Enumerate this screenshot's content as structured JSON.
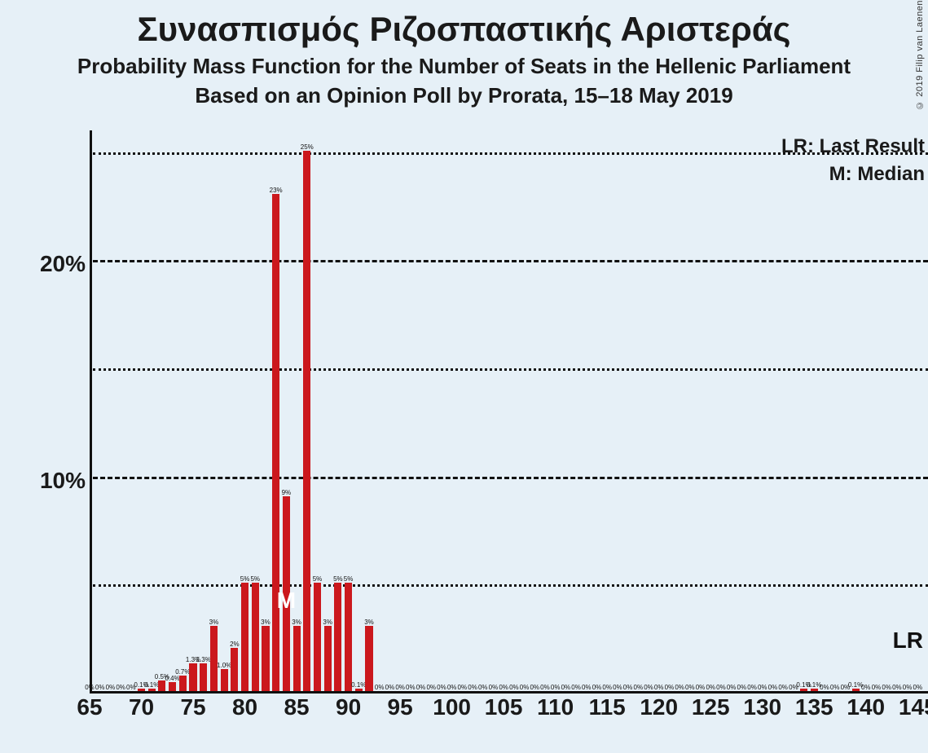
{
  "background_color": "#e6f0f7",
  "bar_color": "#cb181d",
  "axis_color": "#111111",
  "title": "Συνασπισμός Ριζοσπαστικής Αριστεράς",
  "subtitle1": "Probability Mass Function for the Number of Seats in the Hellenic Parliament",
  "subtitle2": "Based on an Opinion Poll by Prorata, 15–18 May 2019",
  "copyright": "© 2019 Filip van Laenen",
  "legend": {
    "lr": "LR: Last Result",
    "m": "M: Median"
  },
  "y_axis": {
    "label_10": "10%",
    "label_20": "20%",
    "max": 26,
    "major_dashed": [
      20,
      10
    ],
    "minor_dotted": [
      25,
      15,
      5
    ]
  },
  "x_axis": {
    "min": 65,
    "max": 146,
    "ticks": [
      65,
      70,
      75,
      80,
      85,
      90,
      95,
      100,
      105,
      110,
      115,
      120,
      125,
      130,
      135,
      140,
      145
    ]
  },
  "median_seat": 84,
  "lr_seat": 145,
  "bars": [
    {
      "seat": 65,
      "pct": 0,
      "label": "0%"
    },
    {
      "seat": 66,
      "pct": 0,
      "label": "0%"
    },
    {
      "seat": 67,
      "pct": 0,
      "label": "0%"
    },
    {
      "seat": 68,
      "pct": 0,
      "label": "0%"
    },
    {
      "seat": 69,
      "pct": 0,
      "label": "0%"
    },
    {
      "seat": 70,
      "pct": 0.1,
      "label": "0.1%"
    },
    {
      "seat": 71,
      "pct": 0.1,
      "label": "0.1%"
    },
    {
      "seat": 72,
      "pct": 0.5,
      "label": "0.5%"
    },
    {
      "seat": 73,
      "pct": 0.4,
      "label": "0.4%"
    },
    {
      "seat": 74,
      "pct": 0.7,
      "label": "0.7%"
    },
    {
      "seat": 75,
      "pct": 1.3,
      "label": "1.3%"
    },
    {
      "seat": 76,
      "pct": 1.3,
      "label": "1.3%"
    },
    {
      "seat": 77,
      "pct": 3,
      "label": "3%"
    },
    {
      "seat": 78,
      "pct": 1.0,
      "label": "1.0%"
    },
    {
      "seat": 79,
      "pct": 2,
      "label": "2%"
    },
    {
      "seat": 80,
      "pct": 5,
      "label": "5%"
    },
    {
      "seat": 81,
      "pct": 5,
      "label": "5%"
    },
    {
      "seat": 82,
      "pct": 3,
      "label": "3%"
    },
    {
      "seat": 83,
      "pct": 23,
      "label": "23%"
    },
    {
      "seat": 84,
      "pct": 9,
      "label": "9%"
    },
    {
      "seat": 85,
      "pct": 3,
      "label": "3%"
    },
    {
      "seat": 86,
      "pct": 25,
      "label": "25%"
    },
    {
      "seat": 87,
      "pct": 5,
      "label": "5%"
    },
    {
      "seat": 88,
      "pct": 3,
      "label": "3%"
    },
    {
      "seat": 89,
      "pct": 5,
      "label": "5%"
    },
    {
      "seat": 90,
      "pct": 5,
      "label": "5%"
    },
    {
      "seat": 91,
      "pct": 0.1,
      "label": "0.1%"
    },
    {
      "seat": 92,
      "pct": 3,
      "label": "3%"
    },
    {
      "seat": 93,
      "pct": 0,
      "label": "0%"
    },
    {
      "seat": 94,
      "pct": 0,
      "label": "0%"
    },
    {
      "seat": 95,
      "pct": 0,
      "label": "0%"
    },
    {
      "seat": 96,
      "pct": 0,
      "label": "0%"
    },
    {
      "seat": 97,
      "pct": 0,
      "label": "0%"
    },
    {
      "seat": 98,
      "pct": 0,
      "label": "0%"
    },
    {
      "seat": 99,
      "pct": 0,
      "label": "0%"
    },
    {
      "seat": 100,
      "pct": 0,
      "label": "0%"
    },
    {
      "seat": 101,
      "pct": 0,
      "label": "0%"
    },
    {
      "seat": 102,
      "pct": 0,
      "label": "0%"
    },
    {
      "seat": 103,
      "pct": 0,
      "label": "0%"
    },
    {
      "seat": 104,
      "pct": 0,
      "label": "0%"
    },
    {
      "seat": 105,
      "pct": 0,
      "label": "0%"
    },
    {
      "seat": 106,
      "pct": 0,
      "label": "0%"
    },
    {
      "seat": 107,
      "pct": 0,
      "label": "0%"
    },
    {
      "seat": 108,
      "pct": 0,
      "label": "0%"
    },
    {
      "seat": 109,
      "pct": 0,
      "label": "0%"
    },
    {
      "seat": 110,
      "pct": 0,
      "label": "0%"
    },
    {
      "seat": 111,
      "pct": 0,
      "label": "0%"
    },
    {
      "seat": 112,
      "pct": 0,
      "label": "0%"
    },
    {
      "seat": 113,
      "pct": 0,
      "label": "0%"
    },
    {
      "seat": 114,
      "pct": 0,
      "label": "0%"
    },
    {
      "seat": 115,
      "pct": 0,
      "label": "0%"
    },
    {
      "seat": 116,
      "pct": 0,
      "label": "0%"
    },
    {
      "seat": 117,
      "pct": 0,
      "label": "0%"
    },
    {
      "seat": 118,
      "pct": 0,
      "label": "0%"
    },
    {
      "seat": 119,
      "pct": 0,
      "label": "0%"
    },
    {
      "seat": 120,
      "pct": 0,
      "label": "0%"
    },
    {
      "seat": 121,
      "pct": 0,
      "label": "0%"
    },
    {
      "seat": 122,
      "pct": 0,
      "label": "0%"
    },
    {
      "seat": 123,
      "pct": 0,
      "label": "0%"
    },
    {
      "seat": 124,
      "pct": 0,
      "label": "0%"
    },
    {
      "seat": 125,
      "pct": 0,
      "label": "0%"
    },
    {
      "seat": 126,
      "pct": 0,
      "label": "0%"
    },
    {
      "seat": 127,
      "pct": 0,
      "label": "0%"
    },
    {
      "seat": 128,
      "pct": 0,
      "label": "0%"
    },
    {
      "seat": 129,
      "pct": 0,
      "label": "0%"
    },
    {
      "seat": 130,
      "pct": 0,
      "label": "0%"
    },
    {
      "seat": 131,
      "pct": 0,
      "label": "0%"
    },
    {
      "seat": 132,
      "pct": 0,
      "label": "0%"
    },
    {
      "seat": 133,
      "pct": 0,
      "label": "0%"
    },
    {
      "seat": 134,
      "pct": 0.1,
      "label": "0.1%"
    },
    {
      "seat": 135,
      "pct": 0.1,
      "label": "0.1%"
    },
    {
      "seat": 136,
      "pct": 0,
      "label": "0%"
    },
    {
      "seat": 137,
      "pct": 0,
      "label": "0%"
    },
    {
      "seat": 138,
      "pct": 0,
      "label": "0%"
    },
    {
      "seat": 139,
      "pct": 0.1,
      "label": "0.1%"
    },
    {
      "seat": 140,
      "pct": 0,
      "label": "0%"
    },
    {
      "seat": 141,
      "pct": 0,
      "label": "0%"
    },
    {
      "seat": 142,
      "pct": 0,
      "label": "0%"
    },
    {
      "seat": 143,
      "pct": 0,
      "label": "0%"
    },
    {
      "seat": 144,
      "pct": 0,
      "label": "0%"
    },
    {
      "seat": 145,
      "pct": 0,
      "label": "0%"
    }
  ]
}
